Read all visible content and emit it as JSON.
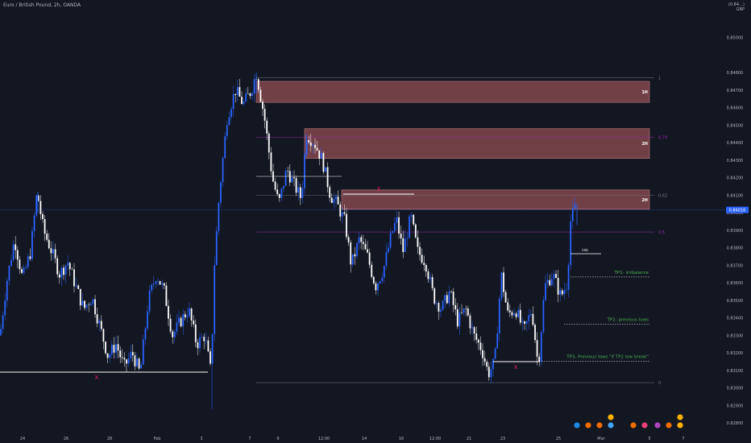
{
  "header": {
    "symbol_title": "Euro / British Pound, 2h, OANDA",
    "currency": "GBP",
    "currency_top": "(0.84…)"
  },
  "colors": {
    "background": "#131722",
    "bull_candle": "#2962ff",
    "bear_candle": "#ffffff",
    "zone_fill": "#a4545a",
    "fib_purple": "#9c27b0",
    "fib_gray": "#787b86",
    "tp_green": "#4caf50",
    "x_marker": "#e91e63",
    "price_label": "#2962ff"
  },
  "annotations": {
    "zone_1h": "1H",
    "zone_2h_upper": "2H",
    "zone_2h_lower": "2H",
    "fib_1": "1",
    "fib_079": "0.79",
    "fib_062": "0.62",
    "fib_05": "0.5",
    "fib_0": "0",
    "imb_label": "imb",
    "tp1": "TP1- imbalance",
    "tp2": "TP2- previous lows",
    "tp3": "TP3- Previous lows \"if TP2 low break\"",
    "x_marker": "X",
    "current_price": "0.84016"
  },
  "chart_data": {
    "type": "candlestick",
    "title": "Euro / British Pound, 2h, OANDA",
    "y_axis_ticks": [
      "0.85000",
      "0.84800",
      "0.84700",
      "0.84600",
      "0.84500",
      "0.84400",
      "0.84300",
      "0.84200",
      "0.84100",
      "0.84000",
      "0.83900",
      "0.83800",
      "0.83700",
      "0.83600",
      "0.83500",
      "0.83400",
      "0.83300",
      "0.83200",
      "0.83100",
      "0.83000",
      "0.82900",
      "0.82800"
    ],
    "x_axis_ticks": [
      "24",
      "26",
      "28",
      "Feb",
      "3",
      "7",
      "9",
      "12:00",
      "14",
      "16",
      "12:00",
      "21",
      "23",
      "25",
      "Mar",
      "5",
      "7"
    ],
    "ylim": [
      0.8275,
      0.8515
    ],
    "current_price": 0.84016,
    "zones": [
      {
        "label": "1H",
        "top": 0.8475,
        "bottom": 0.8463
      },
      {
        "label": "2H",
        "top": 0.8448,
        "bottom": 0.8431
      },
      {
        "label": "2H",
        "top": 0.8413,
        "bottom": 0.8402
      }
    ],
    "fib_levels": [
      {
        "label": "1",
        "price": 0.8477
      },
      {
        "label": "0.79",
        "price": 0.8443
      },
      {
        "label": "0.62",
        "price": 0.841
      },
      {
        "label": "0.5",
        "price": 0.8389
      },
      {
        "label": "0",
        "price": 0.8303
      }
    ],
    "targets": [
      {
        "label": "TP1- imbalance",
        "price": 0.8367
      },
      {
        "label": "TP2- previous lows",
        "price": 0.834
      },
      {
        "label": "TP3- Previous lows \"if TP2 low break\"",
        "price": 0.8319
      }
    ],
    "price_path": [
      [
        0,
        0.833
      ],
      [
        8,
        0.836
      ],
      [
        18,
        0.8385
      ],
      [
        28,
        0.8362
      ],
      [
        38,
        0.8378
      ],
      [
        46,
        0.8412
      ],
      [
        54,
        0.839
      ],
      [
        64,
        0.8378
      ],
      [
        74,
        0.8365
      ],
      [
        84,
        0.8372
      ],
      [
        94,
        0.8358
      ],
      [
        104,
        0.8345
      ],
      [
        114,
        0.8352
      ],
      [
        124,
        0.8335
      ],
      [
        134,
        0.8318
      ],
      [
        144,
        0.8325
      ],
      [
        154,
        0.8312
      ],
      [
        164,
        0.832
      ],
      [
        174,
        0.8308
      ],
      [
        184,
        0.835
      ],
      [
        194,
        0.8365
      ],
      [
        204,
        0.8355
      ],
      [
        214,
        0.833
      ],
      [
        224,
        0.8338
      ],
      [
        234,
        0.8345
      ],
      [
        244,
        0.8325
      ],
      [
        254,
        0.833
      ],
      [
        262,
        0.8308
      ],
      [
        266,
        0.837
      ],
      [
        272,
        0.841
      ],
      [
        282,
        0.8455
      ],
      [
        292,
        0.847
      ],
      [
        302,
        0.8462
      ],
      [
        312,
        0.847
      ],
      [
        318,
        0.848
      ],
      [
        328,
        0.8455
      ],
      [
        338,
        0.842
      ],
      [
        346,
        0.8405
      ],
      [
        356,
        0.8425
      ],
      [
        366,
        0.8415
      ],
      [
        374,
        0.8408
      ],
      [
        380,
        0.8445
      ],
      [
        390,
        0.844
      ],
      [
        400,
        0.843
      ],
      [
        410,
        0.841
      ],
      [
        418,
        0.8405
      ],
      [
        428,
        0.8395
      ],
      [
        436,
        0.837
      ],
      [
        446,
        0.8385
      ],
      [
        456,
        0.8375
      ],
      [
        466,
        0.8358
      ],
      [
        476,
        0.8368
      ],
      [
        486,
        0.8388
      ],
      [
        492,
        0.8396
      ],
      [
        500,
        0.8378
      ],
      [
        510,
        0.8398
      ],
      [
        518,
        0.8378
      ],
      [
        528,
        0.8372
      ],
      [
        538,
        0.8352
      ],
      [
        548,
        0.8345
      ],
      [
        558,
        0.8355
      ],
      [
        568,
        0.8338
      ],
      [
        578,
        0.8345
      ],
      [
        588,
        0.833
      ],
      [
        598,
        0.8322
      ],
      [
        606,
        0.8308
      ],
      [
        614,
        0.8315
      ],
      [
        622,
        0.8365
      ],
      [
        630,
        0.8342
      ],
      [
        640,
        0.8345
      ],
      [
        650,
        0.8332
      ],
      [
        660,
        0.8345
      ],
      [
        668,
        0.8312
      ],
      [
        676,
        0.8358
      ],
      [
        686,
        0.8365
      ],
      [
        696,
        0.8352
      ],
      [
        704,
        0.836
      ],
      [
        708,
        0.8395
      ],
      [
        712,
        0.8401
      ],
      [
        716,
        0.8405
      ]
    ]
  }
}
